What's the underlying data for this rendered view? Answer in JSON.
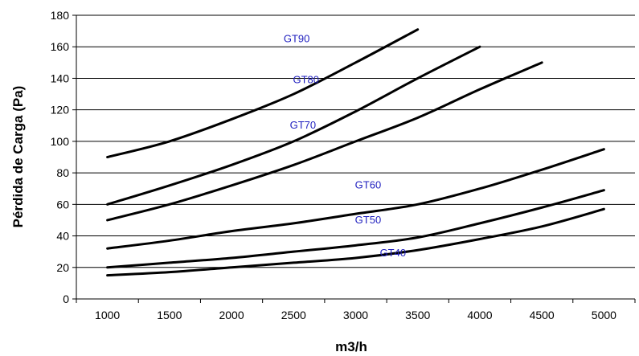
{
  "chart_data": {
    "type": "line",
    "title": "",
    "xlabel": "m3/h",
    "ylabel": "Pérdida de Carga (Pa)",
    "categories": [
      "1000",
      "1500",
      "2000",
      "2500",
      "3000",
      "3500",
      "4000",
      "4500",
      "5000"
    ],
    "ylim": [
      0,
      180
    ],
    "yticks": [
      "0",
      "20",
      "40",
      "60",
      "80",
      "100",
      "120",
      "140",
      "160",
      "180"
    ],
    "grid": "horizontal",
    "legend": "none (inline series labels)",
    "label_color": "#1f1fbf",
    "line_color": "#000000",
    "series": [
      {
        "name": "GT90",
        "values": [
          90,
          100,
          114,
          130,
          150,
          171,
          null,
          null,
          null
        ]
      },
      {
        "name": "GT80",
        "values": [
          60,
          72,
          85,
          100,
          119,
          140,
          160,
          null,
          null
        ]
      },
      {
        "name": "GT70",
        "values": [
          50,
          60,
          72,
          85,
          100,
          115,
          133,
          150,
          null
        ]
      },
      {
        "name": "GT60",
        "values": [
          32,
          37,
          43,
          48,
          54,
          60,
          70,
          82,
          95
        ]
      },
      {
        "name": "GT50",
        "values": [
          20,
          23,
          26,
          30,
          34,
          39,
          48,
          58,
          69
        ]
      },
      {
        "name": "GT40",
        "values": [
          15,
          17,
          20,
          23,
          26,
          31,
          38,
          46,
          57
        ]
      }
    ]
  }
}
